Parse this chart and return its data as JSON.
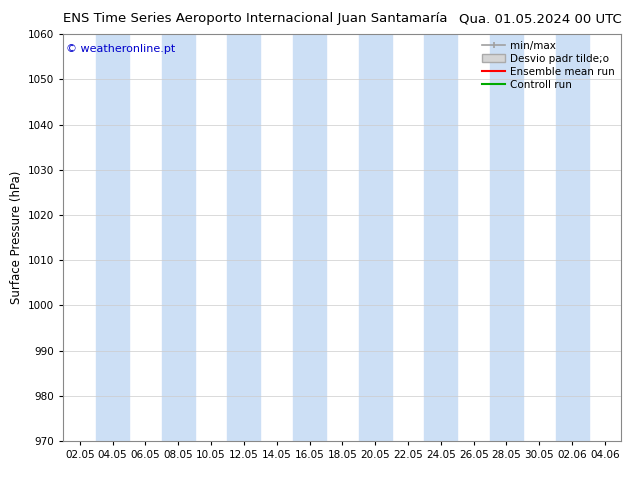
{
  "title_left": "ENS Time Series Aeroporto Internacional Juan Santamaría",
  "title_right": "Qua. 01.05.2024 00 UTC",
  "ylabel": "Surface Pressure (hPa)",
  "watermark": "© weatheronline.pt",
  "ylim": [
    970,
    1060
  ],
  "yticks": [
    970,
    980,
    990,
    1000,
    1010,
    1020,
    1030,
    1040,
    1050,
    1060
  ],
  "xtick_labels": [
    "02.05",
    "04.05",
    "06.05",
    "08.05",
    "10.05",
    "12.05",
    "14.05",
    "16.05",
    "18.05",
    "20.05",
    "22.05",
    "24.05",
    "26.05",
    "28.05",
    "30.05",
    "02.06",
    "04.06"
  ],
  "bg_color": "#ffffff",
  "band_color": "#ccdff5",
  "legend_items": [
    {
      "label": "min/max",
      "color": "#a0a0a0"
    },
    {
      "label": "Desvio padr tilde;o",
      "color": "#c8c8c8"
    },
    {
      "label": "Ensemble mean run",
      "color": "#ff0000"
    },
    {
      "label": "Controll run",
      "color": "#00aa00"
    }
  ],
  "title_fontsize": 9.5,
  "axis_fontsize": 8.5,
  "tick_fontsize": 7.5,
  "legend_fontsize": 7.5,
  "watermark_fontsize": 8.0
}
